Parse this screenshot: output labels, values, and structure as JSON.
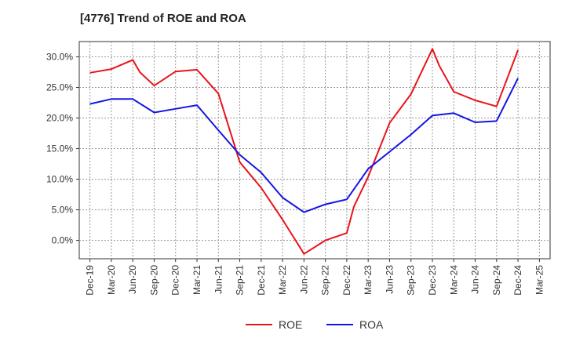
{
  "chart_data": {
    "type": "line",
    "title": "[4776]  Trend of ROE and ROA",
    "xlabel": "",
    "ylabel": "",
    "categories": [
      "Dec-19",
      "Mar-20",
      "Jun-20",
      "Sep-20",
      "Dec-20",
      "Mar-21",
      "Jun-21",
      "Sep-21",
      "Dec-21",
      "Mar-22",
      "Jun-22",
      "Sep-22",
      "Dec-22",
      "Mar-23",
      "Jun-23",
      "Sep-23",
      "Dec-23",
      "Mar-24",
      "Jun-24",
      "Sep-24",
      "Dec-24",
      "Mar-25"
    ],
    "ylim": [
      -3.0,
      32.5
    ],
    "yticks": [
      0.0,
      5.0,
      10.0,
      15.0,
      20.0,
      25.0,
      30.0
    ],
    "ytick_labels": [
      "0.0%",
      "5.0%",
      "10.0%",
      "15.0%",
      "20.0%",
      "25.0%",
      "30.0%"
    ],
    "grid": true,
    "legend_position": "bottom",
    "series": [
      {
        "name": "ROE",
        "color": "#e8141b",
        "x": [
          0,
          1,
          2,
          2.33,
          3,
          4,
          5,
          6,
          7,
          8,
          9,
          10,
          11,
          12,
          12.33,
          13,
          14,
          15,
          16,
          16.33,
          17,
          18,
          19,
          20
        ],
        "values": [
          27.4,
          28.0,
          29.5,
          27.5,
          25.3,
          27.6,
          27.9,
          24.0,
          12.8,
          8.6,
          3.4,
          -2.2,
          0.0,
          1.2,
          5.5,
          10.4,
          19.2,
          23.9,
          31.3,
          28.5,
          24.3,
          22.9,
          21.9,
          31.1
        ]
      },
      {
        "name": "ROA",
        "color": "#1414e6",
        "x": [
          0,
          1,
          2,
          3,
          4,
          5,
          6,
          7,
          8,
          9,
          10,
          11,
          12,
          13,
          14,
          15,
          16,
          17,
          18,
          19,
          20
        ],
        "values": [
          22.3,
          23.1,
          23.1,
          20.9,
          21.5,
          22.1,
          18.0,
          14.0,
          11.1,
          7.0,
          4.6,
          5.9,
          6.7,
          11.7,
          14.5,
          17.3,
          20.4,
          20.8,
          19.3,
          19.5,
          26.5
        ]
      }
    ]
  }
}
